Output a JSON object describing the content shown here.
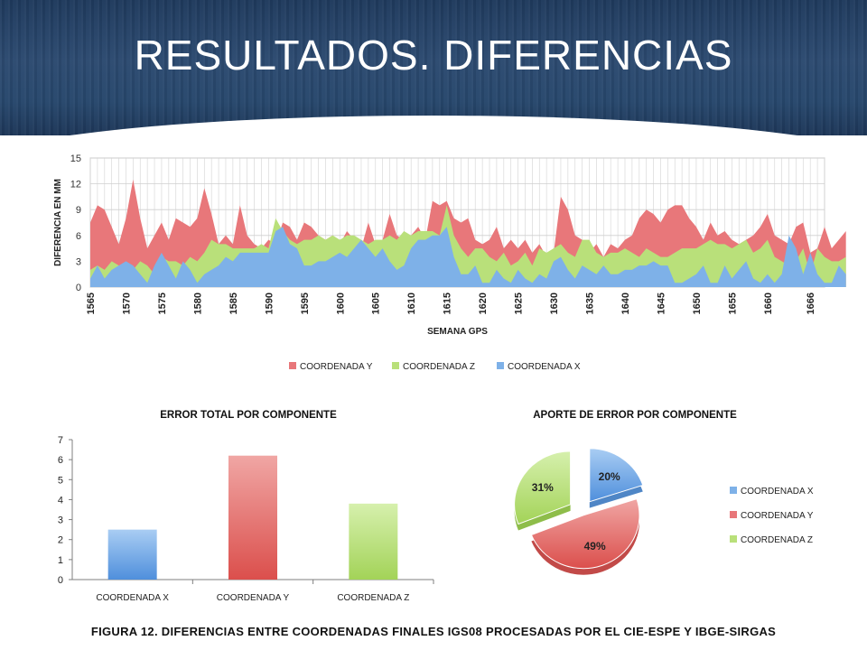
{
  "slide": {
    "title": "RESULTADOS. DIFERENCIAS",
    "caption": "FIGURA 12. DIFERENCIAS ENTRE COORDENADAS FINALES IGS08 PROCESADAS POR EL CIE-ESPE Y IBGE-SIRGAS"
  },
  "chart_data": [
    {
      "type": "area",
      "title": "",
      "xlabel": "SEMANA GPS",
      "ylabel": "DIFERENCIA EN MM",
      "ylim": [
        0,
        15
      ],
      "yticks": [
        "0",
        "3",
        "6",
        "9",
        "12",
        "15"
      ],
      "xtick_labels": [
        "1565",
        "1570",
        "1575",
        "1580",
        "1585",
        "1590",
        "1595",
        "1600",
        "1605",
        "1610",
        "1615",
        "1620",
        "1625",
        "1630",
        "1635",
        "1640",
        "1645",
        "1650",
        "1655",
        "1660",
        "1666"
      ],
      "grid": true,
      "legend_position": "bottom",
      "legend": [
        "COORDENADA Y",
        "COORDENADA Z",
        "COORDENADA X"
      ],
      "colors": {
        "y": "#e8777a",
        "z": "#b9e07a",
        "x": "#7eb1e8"
      },
      "x_start": 1565,
      "x_end": 1668,
      "series": [
        {
          "name": "COORDENADA Y",
          "values": [
            7.5,
            9.5,
            9.0,
            7.0,
            5.0,
            8.0,
            12.5,
            8.0,
            4.5,
            6.0,
            7.5,
            5.5,
            8.0,
            7.5,
            7.0,
            8.0,
            11.5,
            8.5,
            5.0,
            6.0,
            5.0,
            9.5,
            6.0,
            5.0,
            4.5,
            5.5,
            5.0,
            7.5,
            7.0,
            5.5,
            7.5,
            7.0,
            6.0,
            5.5,
            6.0,
            5.0,
            6.5,
            5.5,
            4.5,
            7.5,
            5.0,
            5.5,
            8.5,
            6.0,
            5.5,
            6.0,
            7.0,
            5.5,
            10.0,
            9.5,
            10.0,
            8.0,
            7.5,
            8.0,
            5.5,
            5.0,
            5.5,
            7.0,
            4.5,
            5.5,
            4.5,
            5.5,
            4.0,
            5.0,
            3.5,
            4.0,
            10.5,
            9.0,
            6.0,
            5.5,
            4.0,
            5.0,
            3.5,
            5.0,
            4.5,
            5.5,
            6.0,
            8.0,
            9.0,
            8.5,
            7.5,
            9.0,
            9.5,
            9.5,
            8.0,
            7.0,
            5.5,
            7.5,
            6.0,
            6.5,
            5.5,
            5.0,
            5.5,
            6.0,
            7.0,
            8.5,
            6.0,
            5.5,
            5.0,
            7.0,
            7.5,
            4.0,
            4.5,
            7.0,
            4.5,
            5.5,
            6.5
          ]
        },
        {
          "name": "COORDENADA Z",
          "values": [
            2.0,
            2.5,
            2.0,
            3.0,
            2.5,
            2.0,
            2.0,
            3.0,
            2.5,
            1.5,
            3.5,
            3.0,
            3.0,
            2.5,
            3.5,
            3.0,
            4.0,
            5.5,
            5.0,
            5.0,
            4.5,
            4.5,
            4.5,
            4.5,
            5.0,
            4.5,
            8.0,
            6.5,
            5.5,
            5.0,
            5.5,
            5.5,
            6.0,
            5.5,
            6.0,
            5.5,
            6.0,
            6.0,
            5.5,
            5.0,
            5.5,
            5.5,
            6.0,
            5.5,
            6.5,
            6.0,
            6.5,
            6.5,
            6.5,
            6.0,
            9.5,
            6.0,
            4.5,
            3.5,
            4.5,
            4.5,
            3.5,
            3.0,
            4.0,
            2.5,
            3.0,
            4.0,
            2.5,
            4.5,
            4.0,
            4.5,
            5.0,
            4.0,
            3.5,
            5.5,
            5.5,
            4.0,
            3.5,
            4.0,
            4.0,
            4.5,
            4.0,
            3.5,
            4.5,
            4.0,
            3.5,
            3.5,
            4.0,
            4.5,
            4.5,
            4.5,
            5.0,
            5.5,
            5.0,
            5.0,
            4.5,
            5.0,
            5.5,
            4.0,
            4.5,
            5.5,
            3.5,
            3.0,
            2.5,
            3.0,
            4.5,
            1.5,
            4.5,
            3.5,
            3.0,
            3.0,
            3.5
          ]
        },
        {
          "name": "COORDENADA X",
          "values": [
            1.0,
            2.5,
            1.0,
            2.0,
            2.5,
            3.0,
            2.5,
            1.5,
            0.5,
            2.5,
            4.0,
            2.5,
            1.0,
            3.0,
            2.0,
            0.5,
            1.5,
            2.0,
            2.5,
            3.5,
            3.0,
            4.0,
            4.0,
            4.0,
            4.0,
            4.0,
            6.5,
            7.0,
            5.0,
            4.5,
            2.5,
            2.5,
            3.0,
            3.0,
            3.5,
            4.0,
            3.5,
            4.5,
            5.5,
            4.5,
            3.5,
            4.5,
            3.0,
            2.0,
            2.5,
            4.5,
            5.5,
            5.5,
            6.0,
            6.0,
            7.0,
            3.5,
            1.5,
            1.5,
            2.5,
            0.5,
            0.5,
            2.0,
            1.0,
            0.5,
            2.0,
            1.0,
            0.5,
            1.5,
            1.0,
            3.0,
            3.5,
            2.0,
            1.0,
            2.5,
            2.0,
            1.5,
            2.5,
            1.5,
            1.5,
            2.0,
            2.0,
            2.5,
            2.5,
            3.0,
            2.5,
            2.5,
            0.5,
            0.5,
            1.0,
            1.5,
            2.5,
            0.5,
            0.5,
            2.5,
            1.0,
            2.0,
            3.0,
            1.0,
            0.5,
            1.5,
            0.5,
            1.5,
            6.0,
            4.5,
            1.5,
            4.0,
            1.5,
            0.5,
            0.5,
            2.5,
            1.5
          ]
        }
      ]
    },
    {
      "type": "bar",
      "title": "ERROR TOTAL POR COMPONENTE",
      "categories": [
        "COORDENADA X",
        "COORDENADA Y",
        "COORDENADA Z"
      ],
      "values": [
        2.5,
        6.2,
        3.8
      ],
      "ylim": [
        0,
        7
      ],
      "yticks": [
        "0",
        "1",
        "2",
        "3",
        "4",
        "5",
        "6",
        "7"
      ],
      "colors": [
        "#7eb1e8",
        "#e8777a",
        "#b9e07a"
      ]
    },
    {
      "type": "pie",
      "title": "APORTE DE ERROR POR COMPONENTE",
      "labels": [
        "COORDENADA X",
        "COORDENADA Y",
        "COORDENADA Z"
      ],
      "values": [
        20,
        49,
        31
      ],
      "value_labels": [
        "20%",
        "49%",
        "31%"
      ],
      "legend_position": "right",
      "colors": [
        "#7eb1e8",
        "#e8777a",
        "#b9e07a"
      ]
    }
  ]
}
